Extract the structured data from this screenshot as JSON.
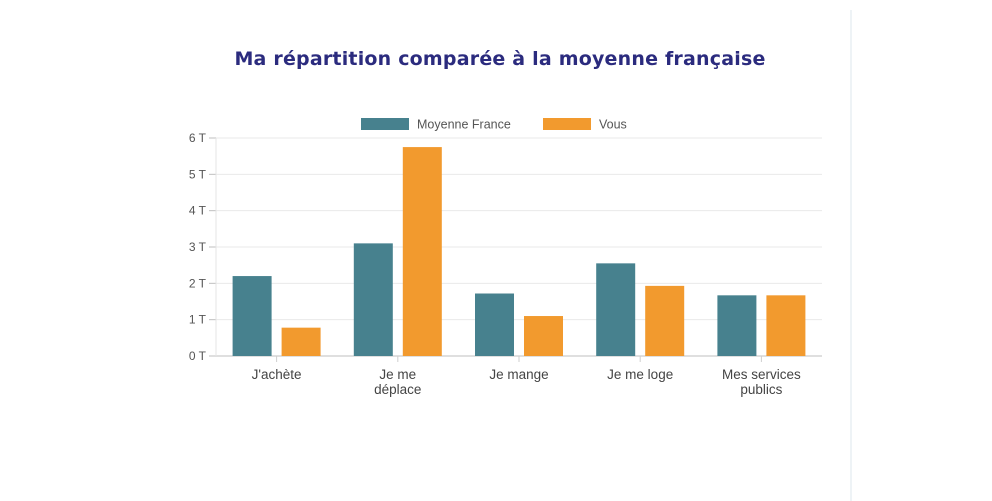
{
  "chart_data": {
    "type": "bar",
    "title": "Ma répartition comparée à la moyenne française",
    "xlabel": "",
    "ylabel": "",
    "ylim": [
      0,
      6
    ],
    "yticks": [
      "0 T",
      "1 T",
      "2 T",
      "3 T",
      "4 T",
      "5 T",
      "6 T"
    ],
    "categories": [
      [
        "J'achète"
      ],
      [
        "Je me",
        "déplace"
      ],
      [
        "Je mange"
      ],
      [
        "Je me loge"
      ],
      [
        "Mes services",
        "publics"
      ]
    ],
    "series": [
      {
        "name": "Moyenne France",
        "color": "#47818e",
        "values": [
          2.2,
          3.1,
          1.72,
          2.55,
          1.67
        ]
      },
      {
        "name": "Vous",
        "color": "#f29a2e",
        "values": [
          0.78,
          5.75,
          1.1,
          1.93,
          1.67
        ]
      }
    ],
    "grid": true,
    "legend": "top-center"
  }
}
